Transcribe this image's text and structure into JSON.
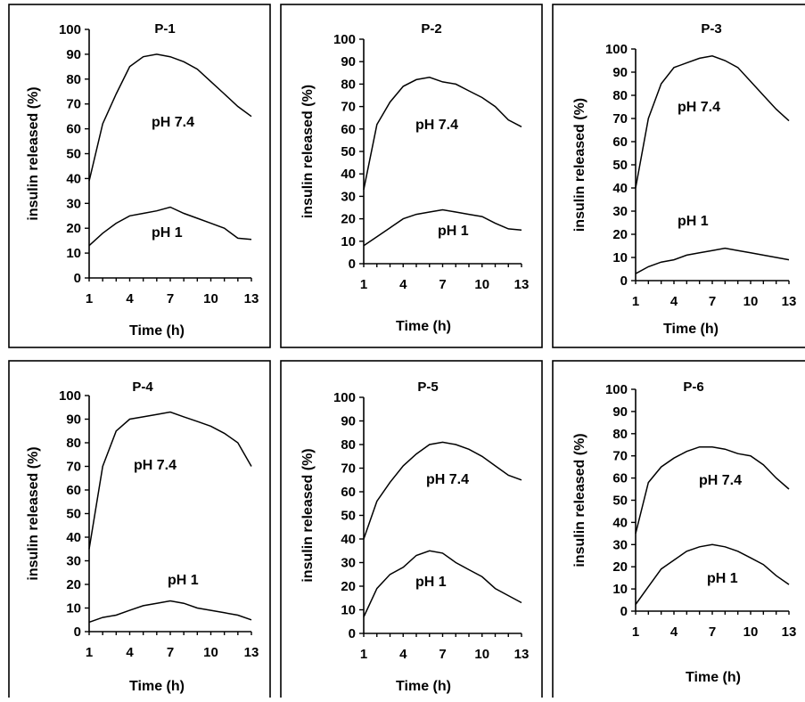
{
  "chart_data": [
    {
      "type": "line",
      "title": "P-1",
      "xlabel": "Time (h)",
      "ylabel": "insulin released (%)",
      "xticks": [
        "1",
        "4",
        "7",
        "10",
        "13"
      ],
      "yticks": [
        "0",
        "10",
        "20",
        "30",
        "40",
        "50",
        "60",
        "70",
        "80",
        "90",
        "100"
      ],
      "xlim": [
        1,
        13
      ],
      "ylim": [
        0,
        100
      ],
      "x": [
        1,
        2,
        3,
        4,
        5,
        6,
        7,
        8,
        9,
        10,
        11,
        12,
        13
      ],
      "series": [
        {
          "name": "pH 7.4",
          "values": [
            39,
            62,
            74,
            85,
            89,
            90,
            89,
            87,
            84,
            79,
            74,
            69,
            65
          ]
        },
        {
          "name": "pH 1",
          "values": [
            13,
            18,
            22,
            25,
            26,
            27,
            28.5,
            26,
            24,
            22,
            20,
            16,
            15.5
          ]
        }
      ]
    },
    {
      "type": "line",
      "title": "P-2",
      "xlabel": "Time (h)",
      "ylabel": "insulin released (%)",
      "xticks": [
        "1",
        "4",
        "7",
        "10",
        "13"
      ],
      "yticks": [
        "0",
        "10",
        "20",
        "30",
        "40",
        "50",
        "60",
        "70",
        "80",
        "90",
        "100"
      ],
      "xlim": [
        1,
        13
      ],
      "ylim": [
        0,
        100
      ],
      "x": [
        1,
        2,
        3,
        4,
        5,
        6,
        7,
        8,
        9,
        10,
        11,
        12,
        13
      ],
      "series": [
        {
          "name": "pH 7.4",
          "values": [
            33,
            62,
            72,
            79,
            82,
            83,
            81,
            80,
            77,
            74,
            70,
            64,
            61
          ]
        },
        {
          "name": "pH 1",
          "values": [
            8,
            12,
            16,
            20,
            22,
            23,
            24,
            23,
            22,
            21,
            18,
            15.5,
            15
          ]
        }
      ]
    },
    {
      "type": "line",
      "title": "P-3",
      "xlabel": "Time (h)",
      "ylabel": "insulin released (%)",
      "xticks": [
        "1",
        "4",
        "7",
        "10",
        "13"
      ],
      "yticks": [
        "0",
        "10",
        "20",
        "30",
        "40",
        "50",
        "60",
        "70",
        "80",
        "90",
        "100"
      ],
      "xlim": [
        1,
        13
      ],
      "ylim": [
        0,
        100
      ],
      "x": [
        1,
        2,
        3,
        4,
        5,
        6,
        7,
        8,
        9,
        10,
        11,
        12,
        13
      ],
      "series": [
        {
          "name": "pH 7.4",
          "values": [
            40,
            70,
            85,
            92,
            94,
            96,
            97,
            95,
            92,
            86,
            80,
            74,
            69
          ]
        },
        {
          "name": "pH 1",
          "values": [
            3,
            6,
            8,
            9,
            11,
            12,
            13,
            14,
            13,
            12,
            11,
            10,
            9
          ]
        }
      ]
    },
    {
      "type": "line",
      "title": "P-4",
      "xlabel": "Time (h)",
      "ylabel": "insulin released (%)",
      "xticks": [
        "1",
        "4",
        "7",
        "10",
        "13"
      ],
      "yticks": [
        "0",
        "10",
        "20",
        "30",
        "40",
        "50",
        "60",
        "70",
        "80",
        "90",
        "100"
      ],
      "xlim": [
        1,
        13
      ],
      "ylim": [
        0,
        100
      ],
      "x": [
        1,
        2,
        3,
        4,
        5,
        6,
        7,
        8,
        9,
        10,
        11,
        12,
        13
      ],
      "series": [
        {
          "name": "pH 7.4",
          "values": [
            35,
            70,
            85,
            90,
            91,
            92,
            93,
            91,
            89,
            87,
            84,
            80,
            70
          ]
        },
        {
          "name": "pH 1",
          "values": [
            4,
            6,
            7,
            9,
            11,
            12,
            13,
            12,
            10,
            9,
            8,
            7,
            5
          ]
        }
      ]
    },
    {
      "type": "line",
      "title": "P-5",
      "xlabel": "Time (h)",
      "ylabel": "insulin released (%)",
      "xticks": [
        "1",
        "4",
        "7",
        "10",
        "13"
      ],
      "yticks": [
        "0",
        "10",
        "20",
        "30",
        "40",
        "50",
        "60",
        "70",
        "80",
        "90",
        "100"
      ],
      "xlim": [
        1,
        13
      ],
      "ylim": [
        0,
        100
      ],
      "x": [
        1,
        2,
        3,
        4,
        5,
        6,
        7,
        8,
        9,
        10,
        11,
        12,
        13
      ],
      "series": [
        {
          "name": "pH 7.4",
          "values": [
            40,
            56,
            64,
            71,
            76,
            80,
            81,
            80,
            78,
            75,
            71,
            67,
            65
          ]
        },
        {
          "name": "pH 1",
          "values": [
            7,
            19,
            25,
            28,
            33,
            35,
            34,
            30,
            27,
            24,
            19,
            16,
            13
          ]
        }
      ]
    },
    {
      "type": "line",
      "title": "P-6",
      "xlabel": "Time (h)",
      "ylabel": "insulin released (%)",
      "xticks": [
        "1",
        "4",
        "7",
        "10",
        "13"
      ],
      "yticks": [
        "0",
        "10",
        "20",
        "30",
        "40",
        "50",
        "60",
        "70",
        "80",
        "90",
        "100"
      ],
      "xlim": [
        1,
        13
      ],
      "ylim": [
        0,
        100
      ],
      "x": [
        1,
        2,
        3,
        4,
        5,
        6,
        7,
        8,
        9,
        10,
        11,
        12,
        13
      ],
      "series": [
        {
          "name": "pH 7.4",
          "values": [
            35,
            58,
            65,
            69,
            72,
            74,
            74,
            73,
            71,
            70,
            66,
            60,
            55
          ]
        },
        {
          "name": "pH 1",
          "values": [
            3,
            11,
            19,
            23,
            27,
            29,
            30,
            29,
            27,
            24,
            21,
            16,
            12
          ]
        }
      ]
    }
  ]
}
